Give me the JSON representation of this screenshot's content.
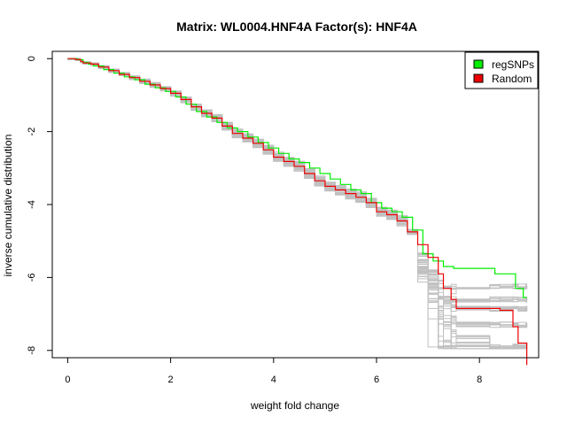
{
  "chart_data": {
    "type": "line",
    "title": "Matrix: WL0004.HNF4A Factor(s): HNF4A",
    "xlabel": "weight fold change",
    "ylabel": "inverse cumulative distribution",
    "xlim": [
      -0.3,
      9.15
    ],
    "ylim": [
      -8.2,
      0.2
    ],
    "xticks": [
      0,
      2,
      4,
      6,
      8
    ],
    "yticks": [
      0,
      -2,
      -4,
      -6,
      -8
    ],
    "grid": false,
    "legend_position": "top-right",
    "series": [
      {
        "name": "regSNPs",
        "color": "#00ee00",
        "x": [
          0.0,
          0.1,
          0.2,
          0.3,
          0.4,
          0.5,
          0.7,
          0.9,
          1.1,
          1.3,
          1.5,
          1.7,
          1.9,
          2.1,
          2.3,
          2.5,
          2.7,
          2.9,
          3.1,
          3.3,
          3.5,
          3.7,
          3.9,
          4.1,
          4.3,
          4.5,
          4.7,
          4.9,
          5.1,
          5.3,
          5.5,
          5.7,
          5.9,
          6.1,
          6.3,
          6.5,
          6.7,
          6.9,
          7.1,
          7.3,
          7.5,
          8.1,
          8.3,
          8.6,
          8.7,
          8.85,
          8.92
        ],
        "y": [
          0.0,
          0.0,
          -0.03,
          -0.1,
          -0.15,
          -0.2,
          -0.3,
          -0.4,
          -0.5,
          -0.58,
          -0.7,
          -0.8,
          -0.9,
          -1.05,
          -1.25,
          -1.45,
          -1.6,
          -1.75,
          -1.9,
          -2.0,
          -2.15,
          -2.3,
          -2.45,
          -2.6,
          -2.75,
          -2.85,
          -3.0,
          -3.15,
          -3.3,
          -3.45,
          -3.6,
          -3.7,
          -3.95,
          -4.1,
          -4.2,
          -4.35,
          -4.7,
          -5.35,
          -5.55,
          -5.7,
          -5.75,
          -5.75,
          -5.9,
          -5.9,
          -6.3,
          -6.55,
          -6.55
        ]
      },
      {
        "name": "Random",
        "color": "#ee0000",
        "x": [
          0.0,
          0.15,
          0.25,
          0.3,
          0.45,
          0.6,
          0.8,
          1.0,
          1.2,
          1.4,
          1.6,
          1.8,
          2.0,
          2.2,
          2.4,
          2.6,
          2.8,
          3.0,
          3.2,
          3.4,
          3.6,
          3.8,
          4.0,
          4.2,
          4.4,
          4.6,
          4.8,
          5.0,
          5.2,
          5.4,
          5.6,
          5.8,
          6.0,
          6.2,
          6.4,
          6.6,
          6.8,
          7.0,
          7.2,
          7.3,
          7.45,
          7.55,
          8.2,
          8.4,
          8.65,
          8.75,
          8.9,
          8.92
        ],
        "y": [
          0.0,
          -0.02,
          -0.08,
          -0.12,
          -0.15,
          -0.23,
          -0.33,
          -0.43,
          -0.52,
          -0.62,
          -0.72,
          -0.82,
          -0.95,
          -1.12,
          -1.32,
          -1.5,
          -1.63,
          -1.85,
          -2.05,
          -2.18,
          -2.32,
          -2.5,
          -2.7,
          -2.82,
          -2.95,
          -3.15,
          -3.35,
          -3.5,
          -3.6,
          -3.7,
          -3.8,
          -3.95,
          -4.2,
          -4.28,
          -4.45,
          -4.75,
          -5.1,
          -5.45,
          -5.9,
          -6.3,
          -6.6,
          -6.85,
          -6.85,
          -6.9,
          -7.35,
          -7.8,
          -7.8,
          -8.4
        ]
      }
    ]
  },
  "legend": [
    {
      "label": "regSNPs",
      "color": "#00ee00"
    },
    {
      "label": "Random",
      "color": "#ee0000"
    }
  ]
}
